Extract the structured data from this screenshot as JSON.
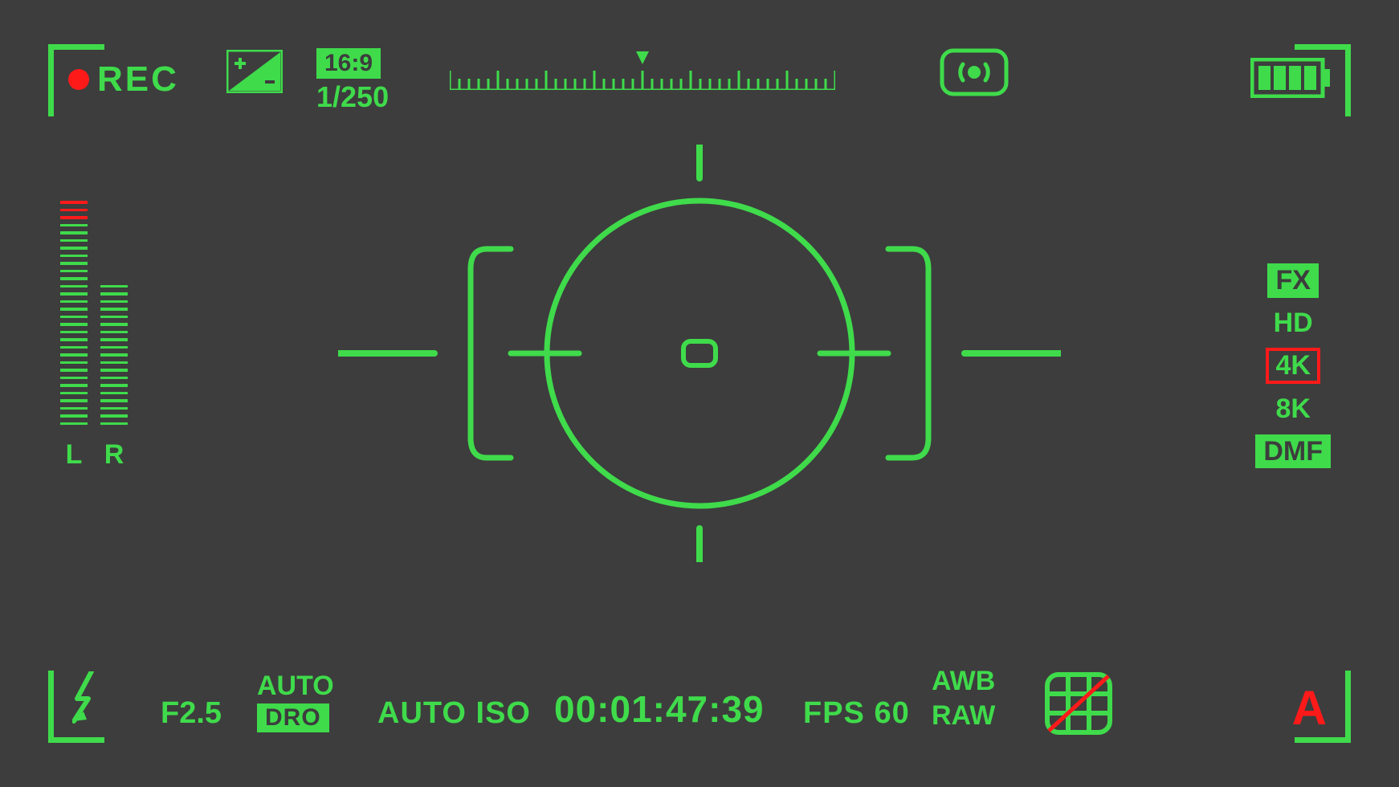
{
  "colors": {
    "background": "#3d3d3d",
    "accent": "#3fdb4b",
    "alert": "#ff1a1a"
  },
  "rec": {
    "label": "REC",
    "recording": true
  },
  "aspect": {
    "ratio": "16:9",
    "shutter": "1/250"
  },
  "ruler": {
    "ticks": 41,
    "majorEvery": 5,
    "pointerIndex": 20
  },
  "battery": {
    "bars": 4,
    "capacity": 4
  },
  "audio": {
    "left_label": "L",
    "right_label": "R",
    "left_segments": 30,
    "left_red": 3,
    "right_segments": 19,
    "right_red": 0
  },
  "modes": {
    "fx": "FX",
    "hd": "HD",
    "k4": "4K",
    "k8": "8K",
    "dmf": "DMF",
    "selected": "4K"
  },
  "bottom": {
    "fstop": "F2.5",
    "auto": "AUTO",
    "dro": "DRO",
    "iso": "AUTO ISO",
    "timecode": "00:01:47:39",
    "fps": "FPS 60",
    "awb": "AWB",
    "raw": "RAW",
    "mode_letter": "A"
  }
}
